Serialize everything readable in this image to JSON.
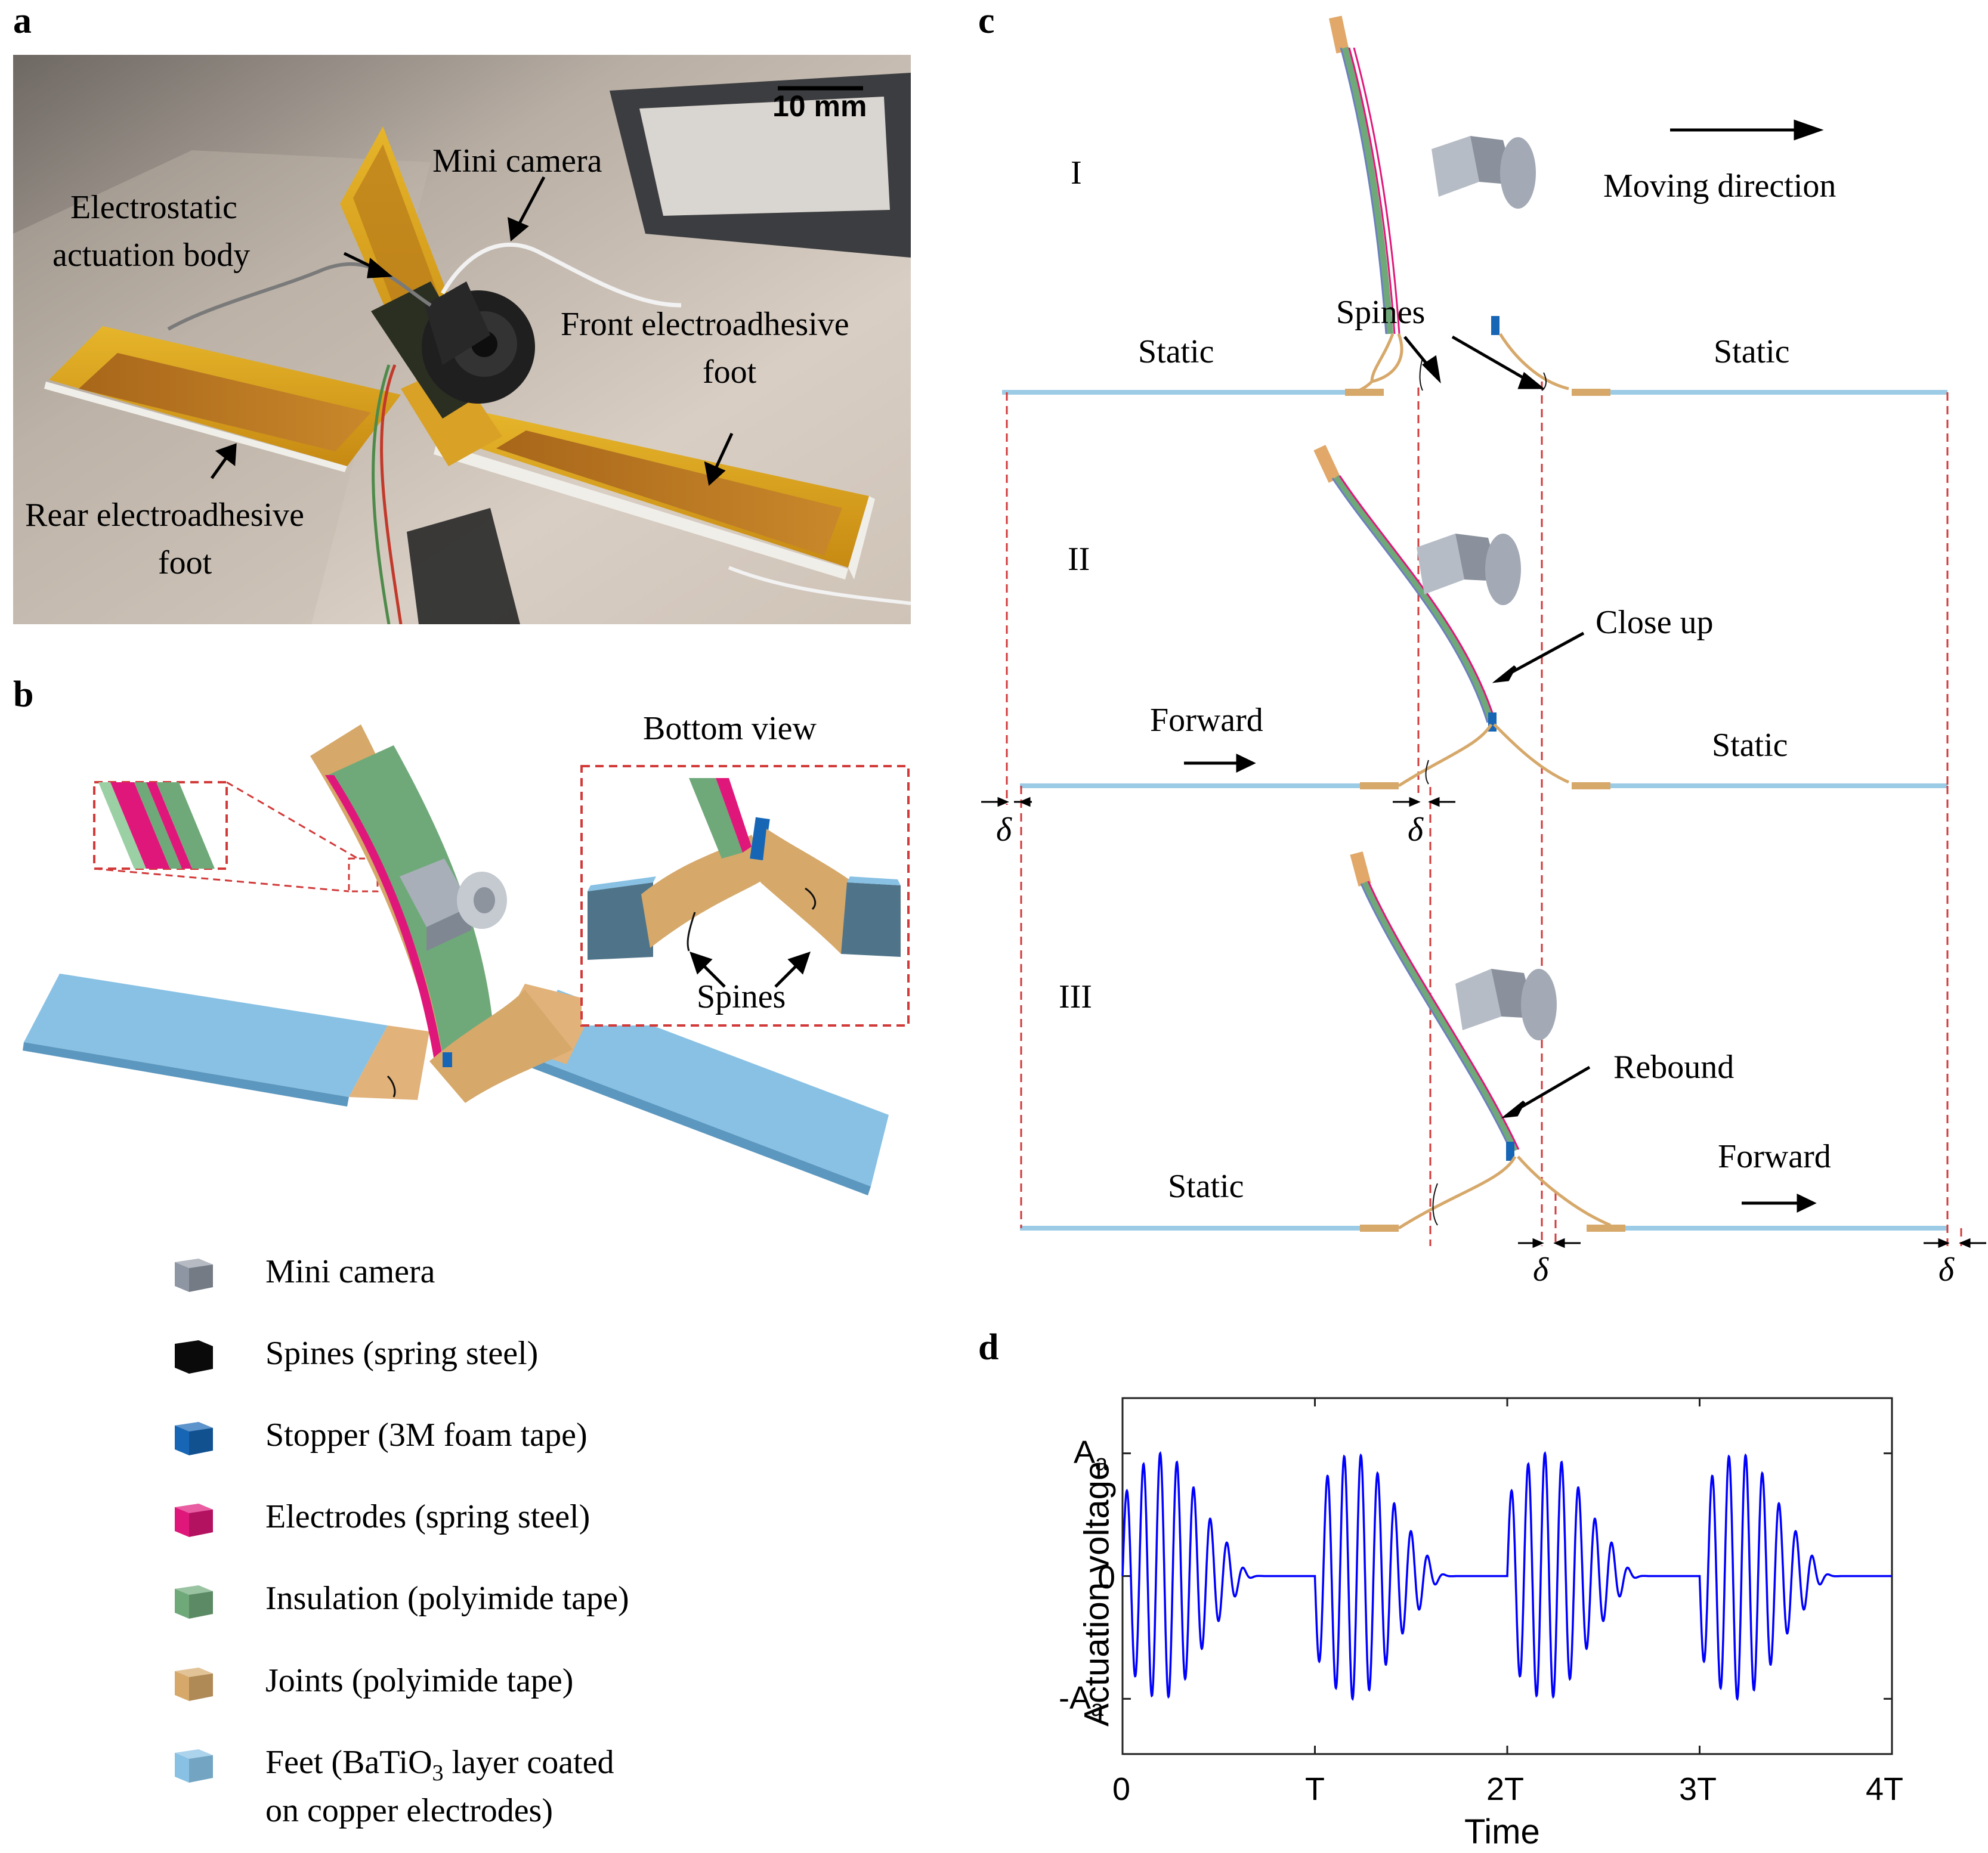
{
  "panels": {
    "a": "a",
    "b": "b",
    "c": "c",
    "d": "d"
  },
  "panel_a": {
    "scale_bar": "10 mm",
    "labels": {
      "mini_camera": "Mini camera",
      "actuation_body_1": "Electrostatic",
      "actuation_body_2": "actuation body",
      "front_foot_1": "Front electroadhesive",
      "front_foot_2": "foot",
      "rear_foot_1": "Rear electroadhesive",
      "rear_foot_2": "foot"
    }
  },
  "panel_b": {
    "bottom_view": "Bottom view",
    "spines": "Spines",
    "legend": [
      {
        "color": "#8e96a3",
        "label": "Mini camera"
      },
      {
        "color": "#0a0a0a",
        "label": "Spines (spring steel)"
      },
      {
        "color": "#1766b5",
        "label": "Stopper (3M foam tape)"
      },
      {
        "color": "#e0177a",
        "label": "Electrodes (spring steel)"
      },
      {
        "color": "#6fa97a",
        "label": "Insulation (polyimide tape)"
      },
      {
        "color": "#d6a86a",
        "label": "Joints (polyimide tape)"
      },
      {
        "color": "#88c1e4",
        "label": "Feet (BaTiO",
        "sub": "3",
        "suffix": " layer coated",
        "line2": "on copper electrodes)"
      }
    ]
  },
  "panel_c": {
    "stage_I": "I",
    "stage_II": "II",
    "stage_III": "III",
    "moving_direction": "Moving direction",
    "spines": "Spines",
    "static": "Static",
    "forward": "Forward",
    "close_up": "Close up",
    "rebound": "Rebound",
    "delta": "δ"
  },
  "chart_data": {
    "type": "line",
    "title": "",
    "xlabel": "Time",
    "ylabel": "Actuation voltage",
    "xticks": [
      "0",
      "T",
      "2T",
      "3T",
      "4T"
    ],
    "yticks": [
      "-A",
      "0",
      "A"
    ],
    "ytick_sub": "a",
    "xlim": [
      0,
      4
    ],
    "ylim": [
      -1.45,
      1.45
    ],
    "series": [
      {
        "color": "#0000ff",
        "periods": 4,
        "carrier_cycles_per_period": 11.5,
        "envelope_peak": 1.0,
        "description_values": "amplitude-modulated sinusoid; envelope max 1.0 near phase 0.25 of each period, near 0 around phase 0.65"
      }
    ]
  }
}
